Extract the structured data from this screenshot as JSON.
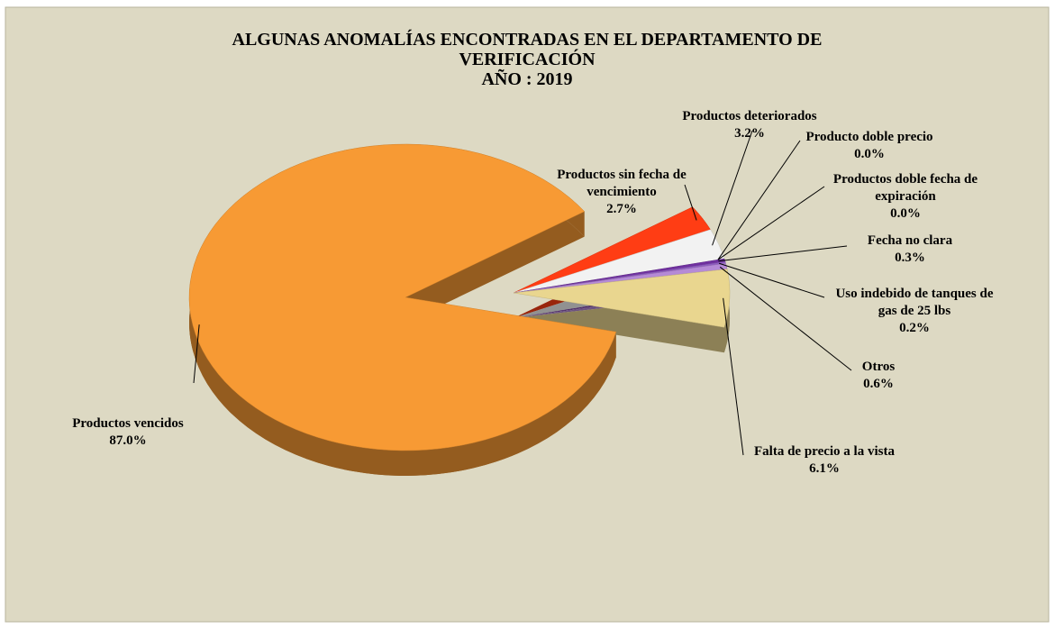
{
  "chart_data": {
    "type": "pie",
    "title": "ALGUNAS ANOMALÍAS ENCONTRADAS EN EL DEPARTAMENTO DE VERIFICACIÓN",
    "subtitle": "AÑO : 2019",
    "categories": [
      "Productos vencidos",
      "Productos sin fecha de vencimiento",
      "Productos deteriorados",
      "Producto doble precio",
      "Productos doble fecha de expiración",
      "Fecha no clara",
      "Uso indebido de tanques de gas de 25 lbs",
      "Otros",
      "Falta de precio a la vista"
    ],
    "values": [
      87.0,
      2.7,
      3.2,
      0.0,
      0.0,
      0.3,
      0.2,
      0.6,
      6.1
    ],
    "value_labels": [
      "87.0%",
      "2.7%",
      "3.2%",
      "0.0%",
      "0.0%",
      "0.3%",
      "0.2%",
      "0.6%",
      "6.1%"
    ],
    "colors": [
      "#f79a34",
      "#ff3d14",
      "#f2f2f2",
      "#5b9bd5",
      "#70ad47",
      "#7030a0",
      "#8e5cc0",
      "#b58ad6",
      "#e9d68f"
    ]
  }
}
